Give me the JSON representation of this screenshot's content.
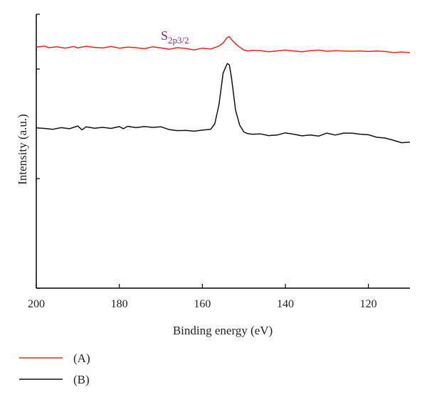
{
  "chart_data": {
    "type": "line",
    "title": "",
    "xlabel": "Binding energy (eV)",
    "ylabel": "Intensity (a.u.)",
    "xlim": [
      200,
      110
    ],
    "ylim": [
      0,
      100
    ],
    "x_ticks": [
      "200",
      "180",
      "160",
      "140",
      "120"
    ],
    "x_tick_values": [
      200,
      180,
      160,
      140,
      120
    ],
    "y_ticks_labeled": false,
    "grid": false,
    "legend_placement": "bottom-left below plot",
    "annotation": {
      "main": "S",
      "sub": "2p3/2",
      "color": "#7b2d8b"
    },
    "series": [
      {
        "name": "(A)",
        "color": "#e8231f",
        "x": [
          200,
          198,
          197,
          195,
          193,
          191,
          190,
          188,
          186,
          184,
          182,
          180,
          178,
          176,
          174,
          172,
          170,
          168,
          166,
          164,
          162,
          160,
          158,
          156,
          155,
          154,
          153.5,
          153,
          152,
          151,
          150,
          149,
          148,
          146,
          144,
          142,
          140,
          138,
          136,
          134,
          132,
          130,
          128,
          126,
          124,
          122,
          120,
          118,
          116,
          114,
          112,
          110
        ],
        "y": [
          88.0,
          88.4,
          87.8,
          88.1,
          87.6,
          88.2,
          87.7,
          88.3,
          87.9,
          87.7,
          88.2,
          87.6,
          88.0,
          87.8,
          87.4,
          88.1,
          87.7,
          87.2,
          87.8,
          87.5,
          87.0,
          87.6,
          87.3,
          88.4,
          89.5,
          91.5,
          91.8,
          90.8,
          89.2,
          88.0,
          86.9,
          86.6,
          86.8,
          86.7,
          86.3,
          86.6,
          86.9,
          86.6,
          86.3,
          86.7,
          86.9,
          86.5,
          86.7,
          86.6,
          86.5,
          86.6,
          86.4,
          86.6,
          86.4,
          86.0,
          86.2,
          86.0
        ],
        "legend_label": "(A)"
      },
      {
        "name": "(B)",
        "color": "#111111",
        "x": [
          200,
          198,
          196,
          194,
          192,
          190,
          189,
          188,
          186,
          184,
          182,
          180,
          179,
          178,
          176,
          174,
          172,
          170,
          168,
          166,
          164,
          162,
          160,
          158,
          157,
          156,
          155,
          154,
          153.5,
          153,
          152,
          151,
          150,
          149,
          148,
          146,
          144,
          142,
          140,
          138,
          136,
          134,
          132,
          130,
          128,
          126,
          124,
          122,
          120,
          118,
          116,
          114,
          112,
          110
        ],
        "y": [
          58.5,
          58.3,
          58.0,
          58.6,
          58.2,
          59.2,
          57.8,
          58.9,
          58.4,
          58.7,
          58.3,
          59.0,
          58.2,
          59.1,
          58.6,
          59.0,
          58.7,
          58.9,
          57.9,
          57.5,
          57.6,
          57.3,
          57.7,
          58.0,
          60.0,
          67.0,
          78.5,
          82.0,
          81.5,
          77.0,
          65.0,
          59.5,
          57.0,
          56.4,
          56.2,
          56.3,
          55.7,
          55.9,
          56.7,
          56.2,
          55.6,
          55.9,
          55.5,
          56.6,
          55.9,
          56.6,
          56.6,
          56.2,
          56.0,
          55.1,
          54.8,
          54.0,
          53.1,
          53.3
        ],
        "legend_label": "(B)"
      }
    ]
  }
}
